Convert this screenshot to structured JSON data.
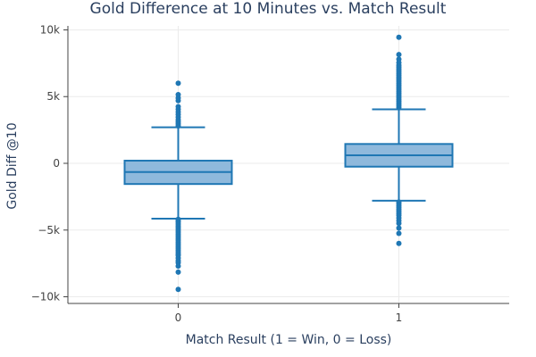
{
  "chart_data": {
    "type": "box",
    "title": "Gold Difference at 10 Minutes vs. Match Result",
    "xlabel": "Match Result (1 = Win, 0 = Loss)",
    "ylabel": "Gold Diff @10",
    "categories": [
      "0",
      "1"
    ],
    "ylim": [
      -10500,
      10300
    ],
    "yticks": [
      -10000,
      -5000,
      0,
      5000,
      10000
    ],
    "ytick_labels": [
      "−10k",
      "−5k",
      "0",
      "5k",
      "10k"
    ],
    "grid": true,
    "color": "#1f77b4",
    "fill_color": "#8fb9dc",
    "boxes": [
      {
        "category": "0",
        "q1": -1550,
        "median": -650,
        "q3": 200,
        "lower_fence": -4150,
        "upper_fence": 2700,
        "outliers": [
          -9450,
          -8150,
          -7700,
          -7450,
          -7300,
          -7100,
          -6900,
          -6800,
          -6650,
          -6500,
          -6350,
          -6200,
          -6050,
          -5900,
          -5750,
          -5600,
          -5450,
          -5300,
          -5150,
          -5000,
          -4850,
          -4700,
          -4550,
          -4400,
          -4300,
          -4200,
          2800,
          2950,
          3100,
          3250,
          3450,
          3650,
          3850,
          4050,
          4250,
          4700,
          4900,
          5150,
          6000
        ]
      },
      {
        "category": "1",
        "q1": -250,
        "median": 600,
        "q3": 1450,
        "lower_fence": -2800,
        "upper_fence": 4050,
        "outliers": [
          -6000,
          -5250,
          -4850,
          -4500,
          -4300,
          -4100,
          -3900,
          -3750,
          -3600,
          -3450,
          -3300,
          -3150,
          -3000,
          -2900,
          4200,
          4350,
          4500,
          4650,
          4800,
          4950,
          5100,
          5250,
          5400,
          5550,
          5700,
          5850,
          6000,
          6150,
          6300,
          6450,
          6600,
          6750,
          6900,
          7050,
          7200,
          7350,
          7550,
          7800,
          8150,
          9450
        ]
      }
    ]
  }
}
